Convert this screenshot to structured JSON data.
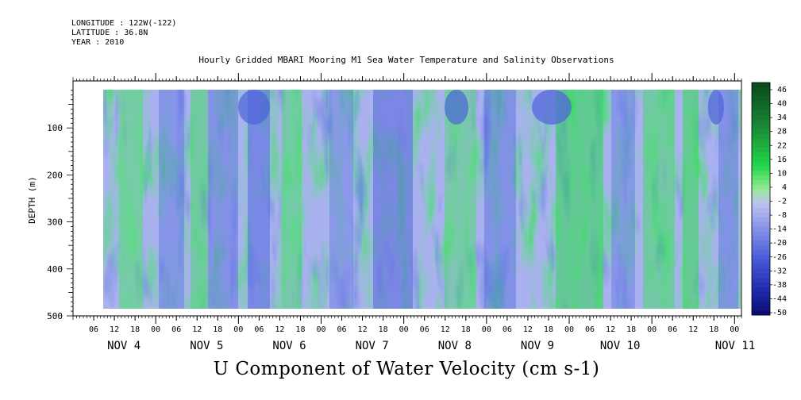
{
  "header": {
    "longitude": "LONGITUDE : 122W(-122)",
    "latitude": "LATITUDE : 36.8N",
    "year": "YEAR : 2010",
    "title": "Hourly Gridded MBARI Mooring M1 Sea Water Temperature and Salinity Observations"
  },
  "chart_data": {
    "type": "heatmap",
    "title": "Hourly Gridded MBARI Mooring M1 Sea Water Temperature and Salinity Observations",
    "xlabel": "U Component of Water Velocity (cm s-1)",
    "ylabel": "DEPTH (m)",
    "y_ticks": [
      "100",
      "200",
      "300",
      "400",
      "500"
    ],
    "y_range": [
      20,
      500
    ],
    "y_inverted": true,
    "x_range_hours": [
      "2010-11-03 00:00",
      "2010-11-11 02:00"
    ],
    "x_hour_ticks": [
      "06",
      "12",
      "18",
      "00",
      "06",
      "12",
      "18",
      "00",
      "06",
      "12",
      "18",
      "00",
      "06",
      "12",
      "18",
      "00",
      "06",
      "12",
      "18",
      "00",
      "06",
      "12",
      "18",
      "00",
      "06",
      "12",
      "18",
      "00",
      "06",
      "12",
      "18",
      "00"
    ],
    "x_day_labels": [
      "NOV  4",
      "NOV  5",
      "NOV  6",
      "NOV  7",
      "NOV  8",
      "NOV  9",
      "NOV 10",
      "NOV 11"
    ],
    "colorbar_labels": [
      "46",
      "40",
      "34",
      "28",
      "22",
      "16",
      "10",
      "4",
      "-2",
      "-8",
      "-14",
      "-20",
      "-26",
      "-32",
      "-38",
      "-44",
      "-50"
    ],
    "colorbar_range": [
      -50,
      50
    ],
    "colors": {
      "strong_positive": "#0a4a1e",
      "positive": "#22d84a",
      "weak_positive": "#a0e8a0",
      "weak_negative": "#b8b8ee",
      "negative": "#7a86e6",
      "strong_negative": "#0b0b6e"
    },
    "grid": false,
    "legend_placement": "right"
  }
}
